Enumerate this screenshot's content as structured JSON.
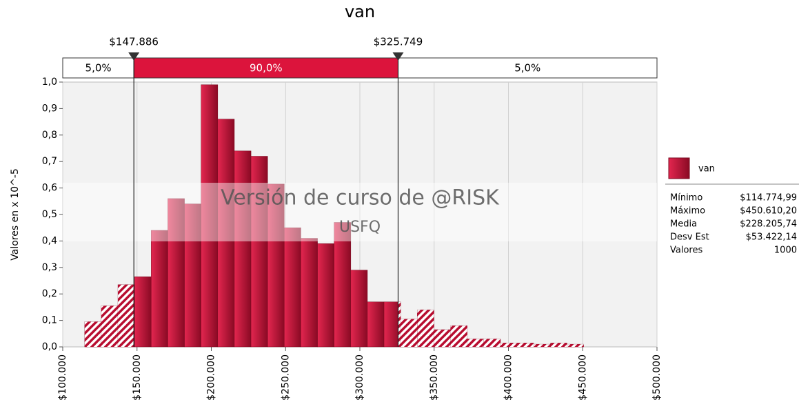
{
  "chart_data": {
    "type": "histogram",
    "title": "van",
    "ylabel": "Valores en x 10^-5",
    "bins": [
      114775,
      125970,
      137164,
      148359,
      159553,
      170748,
      181942,
      193137,
      204331,
      215526,
      226720,
      237915,
      249109,
      260304,
      271498,
      282693,
      293887,
      305082,
      316276,
      327471,
      338665,
      349860,
      361054,
      372249,
      383443,
      394638,
      405832,
      417027,
      428221,
      439416,
      450610
    ],
    "values": [
      0.095,
      0.155,
      0.235,
      0.265,
      0.44,
      0.56,
      0.54,
      0.99,
      0.86,
      0.74,
      0.72,
      0.615,
      0.45,
      0.41,
      0.39,
      0.47,
      0.29,
      0.17,
      0.17,
      0.105,
      0.14,
      0.065,
      0.08,
      0.03,
      0.03,
      0.015,
      0.015,
      0.01,
      0.015,
      0.01
    ],
    "color": "#c8102e",
    "xlim": [
      100000,
      500000
    ],
    "ylim": [
      0,
      1
    ],
    "xticks": [
      {
        "value": 100000,
        "label": "$100.000"
      },
      {
        "value": 150000,
        "label": "$150.000"
      },
      {
        "value": 200000,
        "label": "$200.000"
      },
      {
        "value": 250000,
        "label": "$250.000"
      },
      {
        "value": 300000,
        "label": "$300.000"
      },
      {
        "value": 350000,
        "label": "$350.000"
      },
      {
        "value": 400000,
        "label": "$400.000"
      },
      {
        "value": 450000,
        "label": "$450.000"
      },
      {
        "value": 500000,
        "label": "$500.000"
      }
    ],
    "yticks": [
      {
        "value": 0,
        "label": "0,0"
      },
      {
        "value": 0.1,
        "label": "0,1"
      },
      {
        "value": 0.2,
        "label": "0,2"
      },
      {
        "value": 0.3,
        "label": "0,3"
      },
      {
        "value": 0.4,
        "label": "0,4"
      },
      {
        "value": 0.5,
        "label": "0,5"
      },
      {
        "value": 0.6,
        "label": "0,6"
      },
      {
        "value": 0.7,
        "label": "0,7"
      },
      {
        "value": 0.8,
        "label": "0,8"
      },
      {
        "value": 0.9,
        "label": "0,9"
      },
      {
        "value": 1,
        "label": "1,0"
      }
    ],
    "grid": true,
    "delimiters": [
      {
        "value": 147886,
        "label": "$147.886"
      },
      {
        "value": 325749,
        "label": "$325.749"
      }
    ],
    "band_percents": [
      5,
      90,
      5
    ],
    "band_labels": [
      "5,0%",
      "90,0%",
      "5,0%"
    ],
    "watermark": [
      "Versión de curso de @RISK",
      "USFQ"
    ],
    "legend": {
      "name": "van"
    },
    "stats": [
      {
        "label": "Mínimo",
        "value": "$114.774,99"
      },
      {
        "label": "Máximo",
        "value": "$450.610,20"
      },
      {
        "label": "Media",
        "value": "$228.205,74"
      },
      {
        "label": "Desv Est",
        "value": "$53.422,14"
      },
      {
        "label": "Valores",
        "value": "1000"
      }
    ]
  }
}
